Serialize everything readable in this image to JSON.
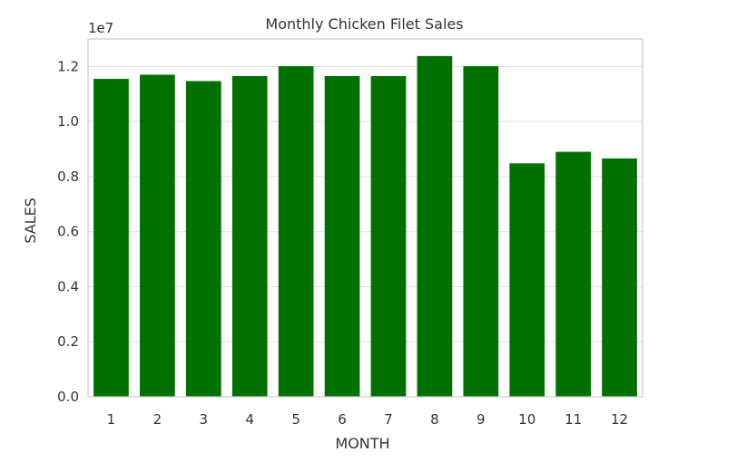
{
  "chart_data": {
    "type": "bar",
    "title": "Monthly Chicken Filet Sales",
    "xlabel": "MONTH",
    "ylabel": "SALES",
    "y_offset_label": "1e7",
    "categories": [
      "1",
      "2",
      "3",
      "4",
      "5",
      "6",
      "7",
      "8",
      "9",
      "10",
      "11",
      "12"
    ],
    "values": [
      11550000,
      11700000,
      11470000,
      11650000,
      12010000,
      11650000,
      11650000,
      12380000,
      12010000,
      8480000,
      8900000,
      8660000
    ],
    "ylim": [
      0,
      13000000
    ],
    "yticks": [
      0,
      2000000,
      4000000,
      6000000,
      8000000,
      10000000,
      12000000
    ],
    "ytick_labels": [
      "0.0",
      "0.2",
      "0.4",
      "0.6",
      "0.8",
      "1.0",
      "1.2"
    ],
    "grid": "horizontal",
    "bar_color": "#007000",
    "grid_color": "#dddddd",
    "frame_color": "#cccccc"
  }
}
